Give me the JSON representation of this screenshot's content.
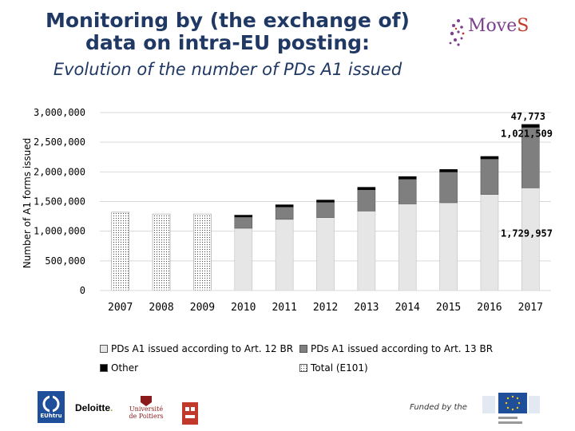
{
  "header": {
    "title_line1": "Monitoring by (the exchange of)",
    "title_line2": "data on intra-EU posting:",
    "subtitle": "Evolution of the number of PDs A1 issued"
  },
  "logos": {
    "moves_word_a": "Move",
    "moves_word_b": "S",
    "ethn_label": "EUhtru",
    "deloitte": "Deloitte",
    "deloitte_dot": ".",
    "poitiers_line1": "Université",
    "poitiers_line2": "de Poitiers",
    "funded_by": "Funded by the"
  },
  "colors": {
    "art12": "#e6e6e6",
    "art13": "#7f7f7f",
    "other": "#000000",
    "total": "#ffffff",
    "title": "#1f3864"
  },
  "chart_data": {
    "type": "bar",
    "stacked": true,
    "categories": [
      "2007",
      "2008",
      "2009",
      "2010",
      "2011",
      "2012",
      "2013",
      "2014",
      "2015",
      "2016",
      "2017"
    ],
    "series": [
      {
        "name": "PDs A1 issued according to Art. 12 BR",
        "values": [
          0,
          0,
          0,
          1050000,
          1200000,
          1230000,
          1340000,
          1460000,
          1480000,
          1620000,
          1729957
        ]
      },
      {
        "name": "PDs A1 issued according to Art. 13 BR",
        "values": [
          0,
          0,
          0,
          190000,
          210000,
          260000,
          360000,
          420000,
          520000,
          600000,
          1021509
        ]
      },
      {
        "name": "Other",
        "values": [
          0,
          0,
          0,
          30000,
          35000,
          35000,
          40000,
          40000,
          40000,
          40000,
          47773
        ]
      },
      {
        "name": "Total (E101)",
        "values": [
          1320000,
          1290000,
          1290000,
          0,
          0,
          0,
          0,
          0,
          0,
          0,
          0
        ]
      }
    ],
    "data_labels": [
      {
        "category": "2017",
        "series": "Other",
        "text": "47,773"
      },
      {
        "category": "2017",
        "series": "PDs A1 issued according to Art. 13 BR",
        "text": "1,021,509"
      },
      {
        "category": "2017",
        "series": "PDs A1 issued according to Art. 12 BR",
        "text": "1,729,957"
      }
    ],
    "ylabel": "Number of A1 forms issued",
    "ylim": [
      0,
      3000000
    ],
    "yticks": [
      0,
      500000,
      1000000,
      1500000,
      2000000,
      2500000,
      3000000
    ],
    "ytick_labels": [
      "0",
      "500,000",
      "1,000,000",
      "1,500,000",
      "2,000,000",
      "2,500,000",
      "3,000,000"
    ],
    "grid": "horizontal",
    "legend": "bottom"
  }
}
